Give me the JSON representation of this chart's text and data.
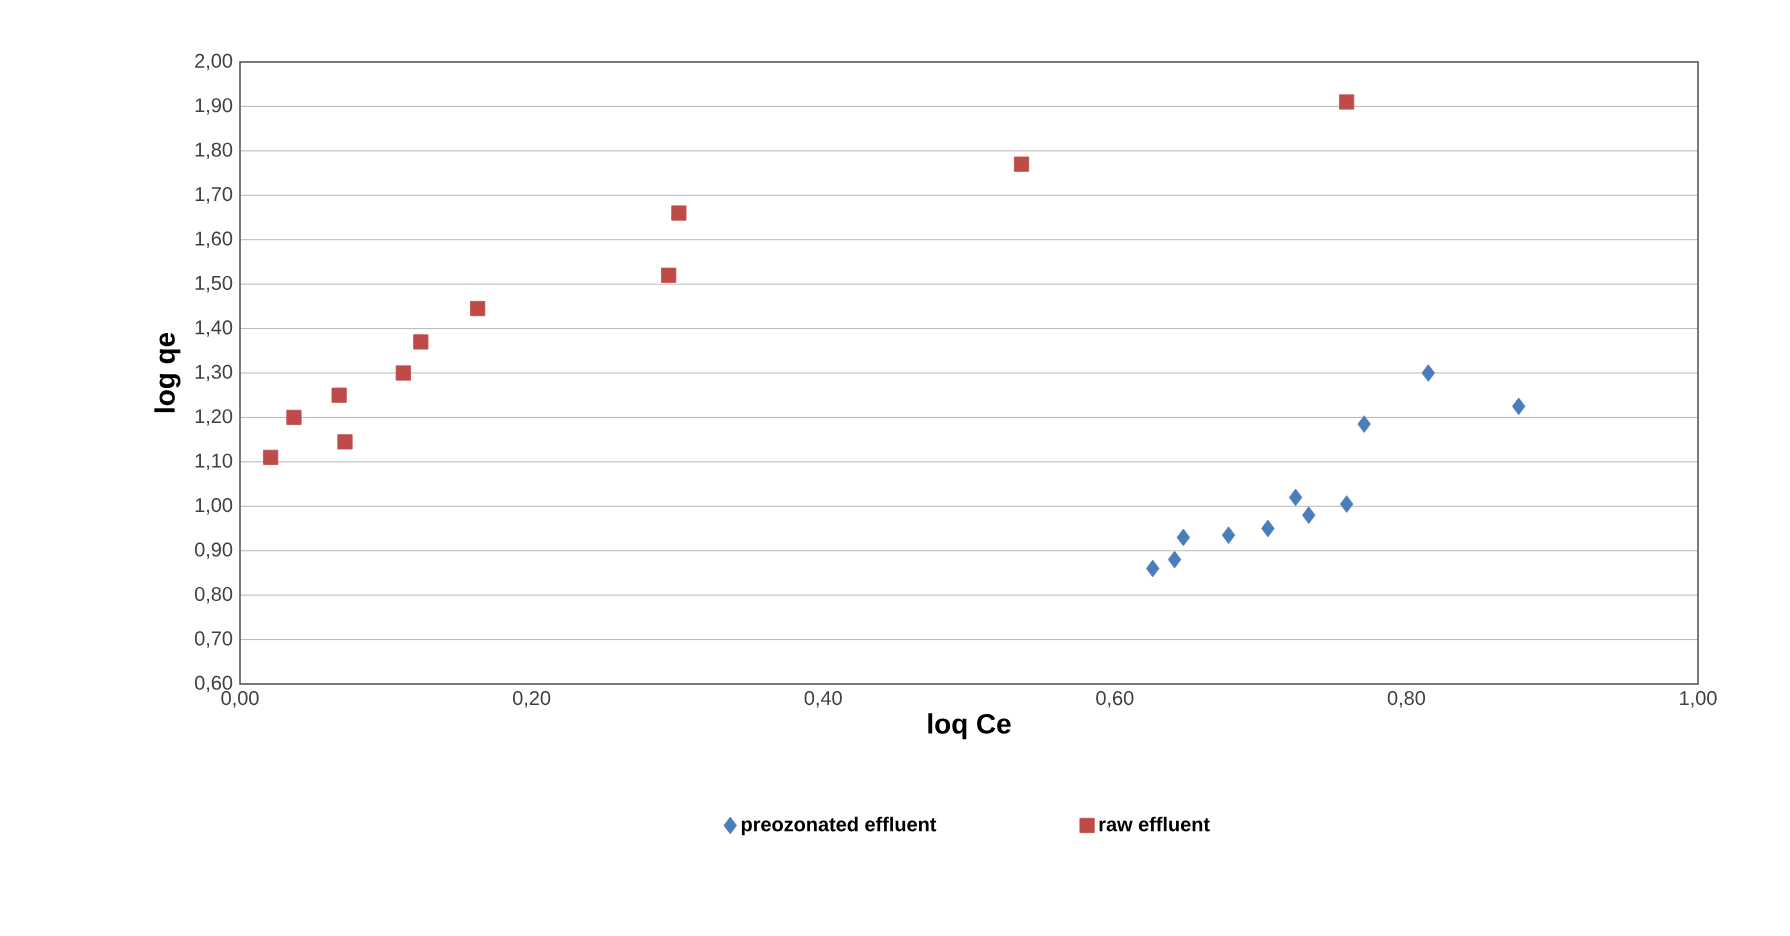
{
  "chart_data": {
    "type": "scatter",
    "xlabel": "loq Ce",
    "ylabel": "log qe",
    "xlim": [
      0,
      1
    ],
    "xticks": [
      {
        "value": 0,
        "label": "0,00"
      },
      {
        "value": 0.2,
        "label": "0,20"
      },
      {
        "value": 0.4,
        "label": "0,40"
      },
      {
        "value": 0.6,
        "label": "0,60"
      },
      {
        "value": 0.8,
        "label": "0,80"
      },
      {
        "value": 1,
        "label": "1,00"
      }
    ],
    "ylim": [
      0.6,
      2.0
    ],
    "yticks": [
      {
        "value": 0.6,
        "label": "0,60"
      },
      {
        "value": 0.7,
        "label": "0,70"
      },
      {
        "value": 0.8,
        "label": "0,80"
      },
      {
        "value": 0.9,
        "label": "0,90"
      },
      {
        "value": 1.0,
        "label": "1,00"
      },
      {
        "value": 1.1,
        "label": "1,10"
      },
      {
        "value": 1.2,
        "label": "1,20"
      },
      {
        "value": 1.3,
        "label": "1,30"
      },
      {
        "value": 1.4,
        "label": "1,40"
      },
      {
        "value": 1.5,
        "label": "1,50"
      },
      {
        "value": 1.6,
        "label": "1,60"
      },
      {
        "value": 1.7,
        "label": "1,70"
      },
      {
        "value": 1.8,
        "label": "1,80"
      },
      {
        "value": 1.9,
        "label": "1,90"
      },
      {
        "value": 2.0,
        "label": "2,00"
      }
    ],
    "grid": "y",
    "legend": "bottom",
    "series": [
      {
        "name": "preozonated effluent",
        "color": "#4a7ebb",
        "marker": "diamond",
        "x": [
          0.626,
          0.641,
          0.647,
          0.678,
          0.705,
          0.724,
          0.733,
          0.759,
          0.771,
          0.815,
          0.877
        ],
        "values": [
          0.86,
          0.88,
          0.93,
          0.935,
          0.95,
          1.02,
          0.98,
          1.005,
          1.185,
          1.3,
          1.225
        ]
      },
      {
        "name": "raw effluent",
        "color": "#be4b48",
        "marker": "square",
        "x": [
          0.021,
          0.037,
          0.068,
          0.072,
          0.112,
          0.124,
          0.163,
          0.294,
          0.301,
          0.536,
          0.759
        ],
        "values": [
          1.11,
          1.2,
          1.25,
          1.145,
          1.3,
          1.37,
          1.445,
          1.52,
          1.66,
          1.77,
          1.91
        ]
      }
    ]
  }
}
